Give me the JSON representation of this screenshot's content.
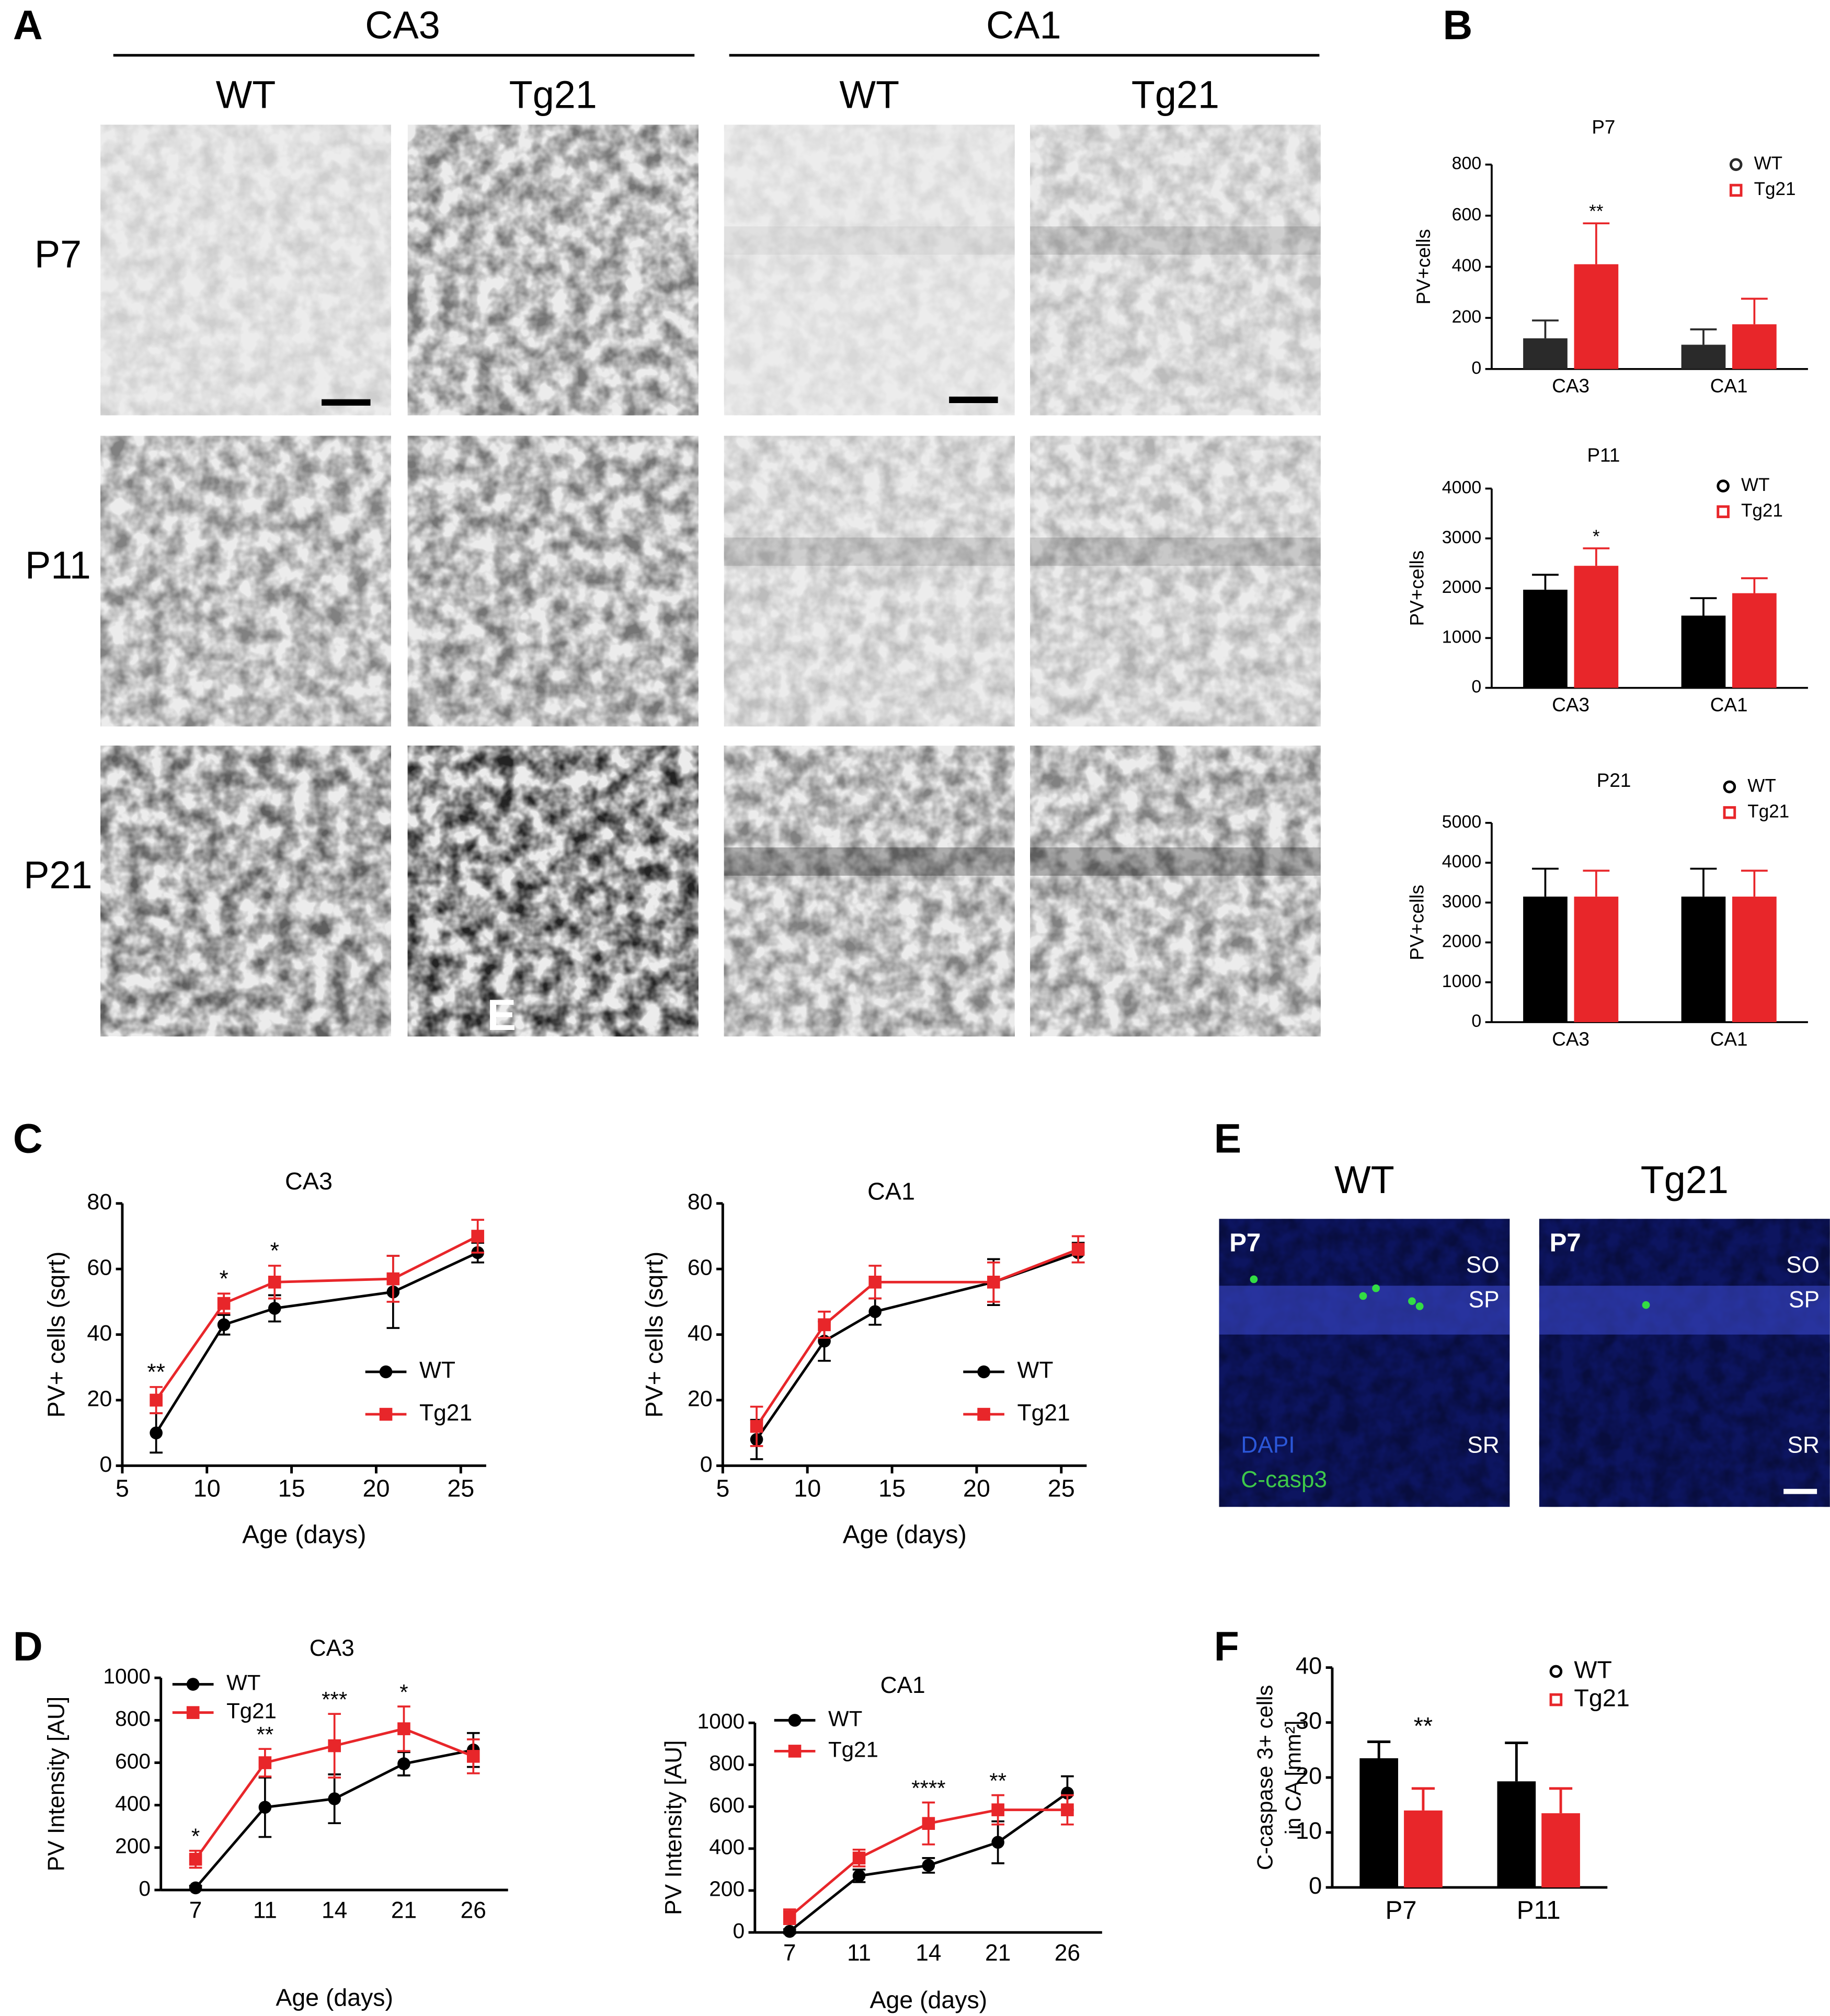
{
  "panel_labels": [
    "A",
    "B",
    "C",
    "D",
    "E",
    "F"
  ],
  "micrographs": {
    "regions": [
      "CA3",
      "CA1"
    ],
    "genotypes": [
      "WT",
      "Tg21",
      "WT",
      "Tg21"
    ],
    "ages": [
      "P7",
      "P11",
      "P21"
    ],
    "overlay_text": "E"
  },
  "caspase_images": {
    "genotypes": [
      "WT",
      "Tg21"
    ],
    "age": "P7",
    "layers": [
      "SO",
      "SP",
      "SR"
    ],
    "stains": [
      "DAPI",
      "C-casp3"
    ]
  },
  "chart_data": [
    {
      "type": "bar",
      "title": "P7",
      "ylabel": "PV+cells",
      "categories": [
        "CA3",
        "CA1"
      ],
      "series": [
        {
          "name": "WT",
          "color": "#2a2a2a",
          "marker": "circle",
          "values": [
            120,
            95
          ],
          "errors": [
            70,
            60
          ]
        },
        {
          "name": "Tg21",
          "color": "#e8262a",
          "marker": "square",
          "values": [
            410,
            175
          ],
          "errors": [
            160,
            100
          ]
        }
      ],
      "annotations": [
        "**",
        null
      ],
      "ylim": [
        0,
        800
      ],
      "yticks": [
        0,
        200,
        400,
        600,
        800
      ]
    },
    {
      "type": "bar",
      "title": "P11",
      "ylabel": "PV+cells",
      "categories": [
        "CA3",
        "CA1"
      ],
      "series": [
        {
          "name": "WT",
          "color": "#000000",
          "marker": "circle",
          "values": [
            1970,
            1450
          ],
          "errors": [
            300,
            350
          ]
        },
        {
          "name": "Tg21",
          "color": "#e8262a",
          "marker": "square",
          "values": [
            2450,
            1900
          ],
          "errors": [
            350,
            300
          ]
        }
      ],
      "annotations": [
        "*",
        null
      ],
      "ylim": [
        0,
        4000
      ],
      "yticks": [
        0,
        1000,
        2000,
        3000,
        4000
      ]
    },
    {
      "type": "bar",
      "title": "P21",
      "ylabel": "PV+cells",
      "categories": [
        "CA3",
        "CA1"
      ],
      "series": [
        {
          "name": "WT",
          "color": "#000000",
          "marker": "circle",
          "values": [
            3150,
            3150
          ],
          "errors": [
            700,
            700
          ]
        },
        {
          "name": "Tg21",
          "color": "#e8262a",
          "marker": "square",
          "values": [
            3150,
            3150
          ],
          "errors": [
            650,
            650
          ]
        }
      ],
      "ylim": [
        0,
        5000
      ],
      "yticks": [
        0,
        1000,
        2000,
        3000,
        4000,
        5000
      ]
    },
    {
      "type": "line",
      "title": "CA3",
      "xlabel": "Age (days)",
      "ylabel": "PV+ cells (sqrt)",
      "x": [
        7,
        11,
        14,
        21,
        26
      ],
      "series": [
        {
          "name": "WT",
          "color": "#000000",
          "marker": "circle",
          "values": [
            10,
            43,
            48,
            53,
            65
          ],
          "errors": [
            6,
            3,
            4,
            11,
            3
          ]
        },
        {
          "name": "Tg21",
          "color": "#e8262a",
          "marker": "square",
          "values": [
            20,
            49.5,
            56,
            57,
            70
          ],
          "errors": [
            4,
            3,
            5,
            7,
            5
          ]
        }
      ],
      "annotations": [
        "**",
        "*",
        "*",
        null,
        null
      ],
      "xlim": [
        5,
        26.5
      ],
      "xticks": [
        5,
        10,
        15,
        20,
        25
      ],
      "ylim": [
        0,
        80
      ],
      "yticks": [
        0,
        20,
        40,
        60,
        80
      ]
    },
    {
      "type": "line",
      "title": "CA1",
      "xlabel": "Age (days)",
      "ylabel": "PV+ cells (sqrt)",
      "x": [
        7,
        11,
        14,
        21,
        26
      ],
      "series": [
        {
          "name": "WT",
          "color": "#000000",
          "marker": "circle",
          "values": [
            8,
            38,
            47,
            56,
            65
          ],
          "errors": [
            6,
            6,
            4,
            7,
            3
          ]
        },
        {
          "name": "Tg21",
          "color": "#e8262a",
          "marker": "square",
          "values": [
            12,
            43,
            56,
            56,
            66
          ],
          "errors": [
            6,
            4,
            5,
            6,
            4
          ]
        }
      ],
      "xlim": [
        5,
        26.5
      ],
      "xticks": [
        5,
        10,
        15,
        20,
        25
      ],
      "ylim": [
        0,
        80
      ],
      "yticks": [
        0,
        20,
        40,
        60,
        80
      ]
    },
    {
      "type": "line",
      "title": "CA3",
      "xlabel": "Age (days)",
      "ylabel": "PV Intensity [AU]",
      "categories": [
        "7",
        "11",
        "14",
        "21",
        "26"
      ],
      "series": [
        {
          "name": "WT",
          "color": "#000000",
          "marker": "circle",
          "values": [
            10,
            390,
            430,
            595,
            660
          ],
          "errors": [
            10,
            140,
            115,
            55,
            80
          ]
        },
        {
          "name": "Tg21",
          "color": "#e8262a",
          "marker": "square",
          "values": [
            145,
            600,
            680,
            760,
            630
          ],
          "errors": [
            40,
            65,
            150,
            105,
            80
          ]
        }
      ],
      "annotations": [
        "*",
        "**",
        "***",
        "*",
        null
      ],
      "ylim": [
        0,
        1000
      ],
      "yticks": [
        0,
        200,
        400,
        600,
        800,
        1000
      ]
    },
    {
      "type": "line",
      "title": "CA1",
      "xlabel": "Age (days)",
      "ylabel": "PV Intensity [AU]",
      "categories": [
        "7",
        "11",
        "14",
        "21",
        "26"
      ],
      "series": [
        {
          "name": "WT",
          "color": "#000000",
          "marker": "circle",
          "values": [
            5,
            270,
            320,
            430,
            665
          ],
          "errors": [
            10,
            30,
            35,
            100,
            80
          ]
        },
        {
          "name": "Tg21",
          "color": "#e8262a",
          "marker": "square",
          "values": [
            75,
            355,
            520,
            585,
            585
          ],
          "errors": [
            35,
            40,
            100,
            70,
            70
          ]
        }
      ],
      "annotations": [
        null,
        null,
        "****",
        "**",
        null
      ],
      "ylim": [
        0,
        1000
      ],
      "yticks": [
        0,
        200,
        400,
        600,
        800,
        1000
      ]
    },
    {
      "type": "bar",
      "ylabel": [
        "C-caspase 3+ cells",
        "in CA [mm²]"
      ],
      "categories": [
        "P7",
        "P11"
      ],
      "series": [
        {
          "name": "WT",
          "color": "#000000",
          "marker": "circle",
          "values": [
            23.5,
            19.3
          ],
          "errors": [
            3,
            7
          ]
        },
        {
          "name": "Tg21",
          "color": "#e8262a",
          "marker": "square",
          "values": [
            14,
            13.5
          ],
          "errors": [
            4,
            4.5
          ]
        }
      ],
      "annotations": [
        "**",
        null
      ],
      "ylim": [
        0,
        40
      ],
      "yticks": [
        0,
        10,
        20,
        30,
        40
      ]
    }
  ]
}
